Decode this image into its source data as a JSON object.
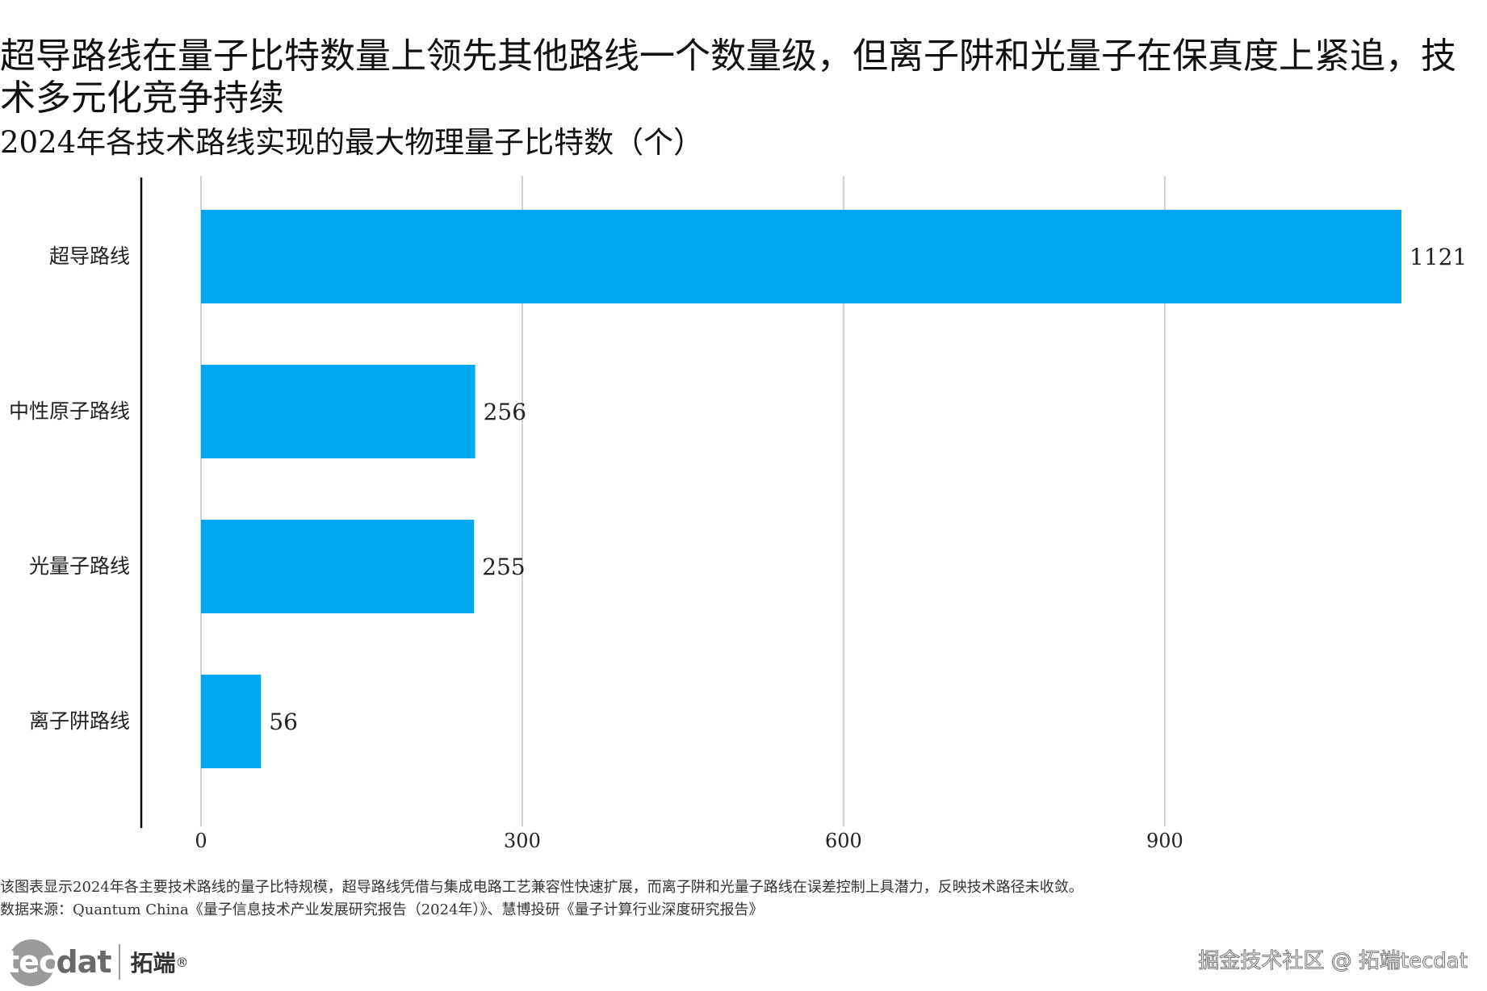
{
  "title": "超导路线在量子比特数量上领先其他路线一个数量级，但离子阱和光量子在保真度上紧追，技术多元化竞争持续",
  "subtitle": "2024年各技术路线实现的最大物理量子比特数（个）",
  "chart_data": {
    "type": "bar",
    "orientation": "horizontal",
    "categories": [
      "超导路线",
      "中性原子路线",
      "光量子路线",
      "离子阱路线"
    ],
    "values": [
      1121,
      256,
      255,
      56
    ],
    "data_labels": [
      "1121",
      "256",
      "255",
      "56"
    ],
    "xticks": [
      0,
      300,
      600,
      900
    ],
    "xlim": [
      0,
      1121
    ],
    "grid": true,
    "bar_color": "#00a8ef",
    "grid_color": "#cfcfcf",
    "axis_color": "#000000"
  },
  "footnotes": {
    "description": "该图表显示2024年各主要技术路线的量子比特规模，超导路线凭借与集成电路工艺兼容性快速扩展，而离子阱和光量子路线在误差控制上具潜力，反映技术路径未收敛。",
    "source": "数据来源：Quantum China《量子信息技术产业发展研究报告（2024年）》、慧博投研《量子计算行业深度研究报告》"
  },
  "branding": {
    "logo_tec": "tec",
    "logo_dat": "dat",
    "logo_cn": "拓端",
    "logo_reg": "®",
    "watermark": "掘金技术社区 @ 拓端tecdat"
  }
}
